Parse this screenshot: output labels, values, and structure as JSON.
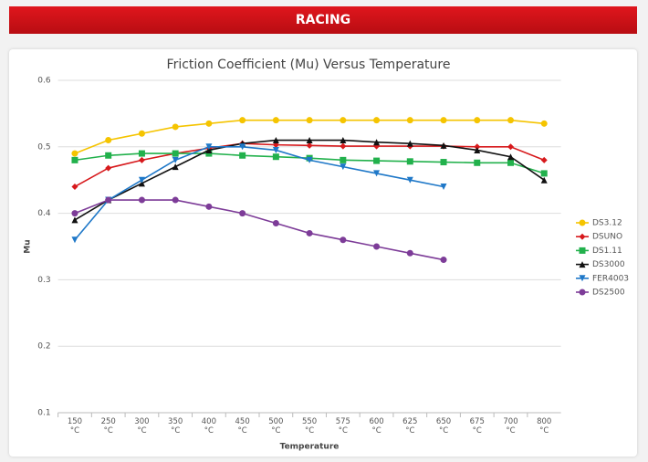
{
  "header": {
    "title": "RACING"
  },
  "chart_data": {
    "type": "line",
    "title": "Friction Coefficient (Mu) Versus Temperature",
    "x_label": "Temperature",
    "y_label": "Mu",
    "categories": [
      "150 °C",
      "250 °C",
      "300 °C",
      "350 °C",
      "400 °C",
      "450 °C",
      "500 °C",
      "550 °C",
      "575 °C",
      "600 °C",
      "625 °C",
      "650 °C",
      "675 °C",
      "700 °C",
      "800 °C"
    ],
    "ylim": [
      0.1,
      0.6
    ],
    "yticks": [
      0.1,
      0.2,
      0.3,
      0.4,
      0.5,
      0.6
    ],
    "grid": true,
    "legend": "right",
    "series": [
      {
        "name": "DS3.12",
        "color": "#f5c400",
        "marker": "circle",
        "values": [
          0.49,
          0.51,
          0.52,
          0.53,
          0.535,
          0.54,
          0.54,
          0.54,
          0.54,
          0.54,
          0.54,
          0.54,
          0.54,
          0.54,
          0.535
        ]
      },
      {
        "name": "DSUNO",
        "color": "#d7191c",
        "marker": "diamond",
        "values": [
          0.44,
          0.468,
          0.48,
          0.49,
          0.498,
          0.505,
          0.503,
          0.502,
          0.501,
          0.501,
          0.501,
          0.501,
          0.5,
          0.5,
          0.48
        ]
      },
      {
        "name": "DS1.11",
        "color": "#22b14c",
        "marker": "square",
        "values": [
          0.48,
          0.487,
          0.49,
          0.49,
          0.49,
          0.487,
          0.485,
          0.483,
          0.48,
          0.479,
          0.478,
          0.477,
          0.476,
          0.476,
          0.46
        ]
      },
      {
        "name": "DS3000",
        "color": "#111111",
        "marker": "triangle",
        "values": [
          0.39,
          0.42,
          0.445,
          0.47,
          0.495,
          0.505,
          0.51,
          0.51,
          0.51,
          0.507,
          0.505,
          0.502,
          0.495,
          0.485,
          0.45
        ]
      },
      {
        "name": "FER4003",
        "color": "#1f78c8",
        "marker": "triangle-down",
        "values": [
          0.36,
          0.42,
          0.45,
          0.48,
          0.5,
          0.5,
          0.495,
          0.48,
          0.47,
          0.46,
          0.45,
          0.44,
          null,
          null,
          null
        ]
      },
      {
        "name": "DS2500",
        "color": "#7d3c98",
        "marker": "circle",
        "values": [
          0.4,
          0.42,
          0.42,
          0.42,
          0.41,
          0.4,
          0.385,
          0.37,
          0.36,
          0.35,
          0.34,
          0.33,
          null,
          null,
          null
        ]
      }
    ]
  }
}
